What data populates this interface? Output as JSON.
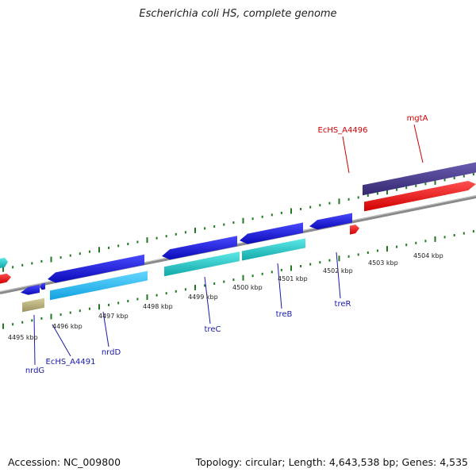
{
  "header": {
    "title": "Escherichia coli HS, complete genome"
  },
  "footer": {
    "accession": "Accession: NC_009800",
    "topology": "Topology: circular; Length: 4,643,538 bp; Genes: 4,535"
  },
  "map": {
    "kbp_labels": [
      "4495 kbp",
      "4496 kbp",
      "4497 kbp",
      "4498 kbp",
      "4499 kbp",
      "4500 kbp",
      "4501 kbp",
      "4502 kbp",
      "4503 kbp",
      "4504 kbp"
    ],
    "gene_labels_forward": [
      "EcHS_A4496",
      "mgtA"
    ],
    "gene_labels_reverse": [
      "nrdG",
      "EcHS_A4491",
      "nrdD",
      "treC",
      "treB",
      "treR"
    ],
    "colors": {
      "forward_label": "#cc0000",
      "reverse_label": "#1a1aaa",
      "tick": "#1f7a1f",
      "backbone": "#8a8a8a",
      "cds_forward": "#ff0000",
      "cds_reverse": "#1515dd",
      "gene_reverse_cyan": "#1fc8c8",
      "gene_reverse_lightblue": "#22b8f0",
      "gene_forward_purple": "#4a3c8c",
      "gene_olive": "#b8b078"
    }
  }
}
